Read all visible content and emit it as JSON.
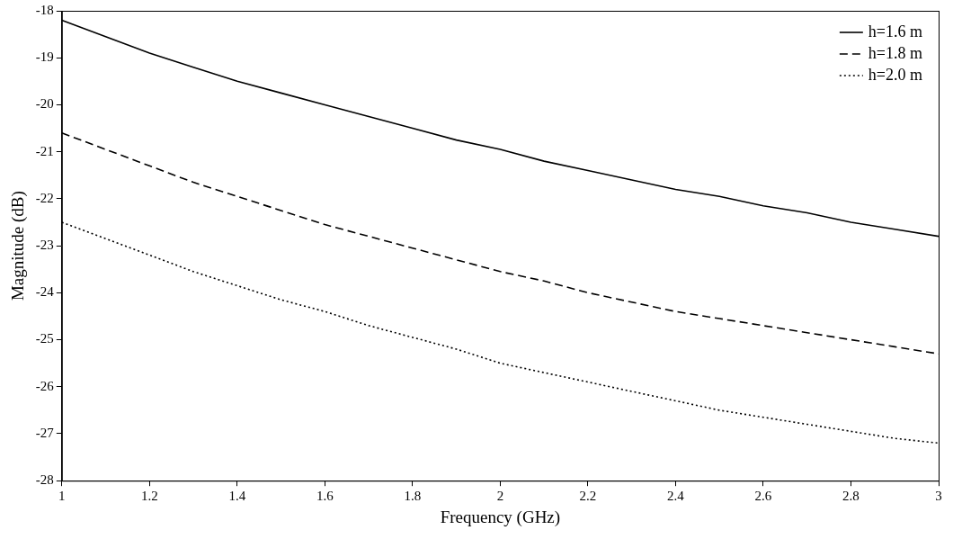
{
  "chart_data": {
    "type": "line",
    "x_label": "Frequency (GHz)",
    "y_label": "Magnitude (dB)",
    "x": [
      1.0,
      1.1,
      1.2,
      1.3,
      1.4,
      1.5,
      1.6,
      1.7,
      1.8,
      1.9,
      2.0,
      2.1,
      2.2,
      2.3,
      2.4,
      2.5,
      2.6,
      2.7,
      2.8,
      2.9,
      3.0
    ],
    "series": [
      {
        "name": "h=1.6 m",
        "color": "#000000",
        "line_style": "solid",
        "values": [
          -18.2,
          -18.55,
          -18.9,
          -19.2,
          -19.5,
          -19.75,
          -20.0,
          -20.25,
          -20.5,
          -20.75,
          -20.95,
          -21.2,
          -21.4,
          -21.6,
          -21.8,
          -21.95,
          -22.15,
          -22.3,
          -22.5,
          -22.65,
          -22.8
        ]
      },
      {
        "name": "h=1.8 m",
        "color": "#000000",
        "line_style": "dashed",
        "values": [
          -20.6,
          -20.95,
          -21.3,
          -21.65,
          -21.95,
          -22.25,
          -22.55,
          -22.8,
          -23.05,
          -23.3,
          -23.55,
          -23.75,
          -24.0,
          -24.2,
          -24.4,
          -24.55,
          -24.7,
          -24.85,
          -25.0,
          -25.15,
          -25.3
        ]
      },
      {
        "name": "h=2.0 m",
        "color": "#000000",
        "line_style": "dotted",
        "values": [
          -22.5,
          -22.85,
          -23.2,
          -23.55,
          -23.85,
          -24.15,
          -24.4,
          -24.7,
          -24.95,
          -25.2,
          -25.5,
          -25.7,
          -25.9,
          -26.1,
          -26.3,
          -26.5,
          -26.65,
          -26.8,
          -26.95,
          -27.1,
          -27.2
        ]
      }
    ],
    "xlim": [
      1,
      3
    ],
    "xticks": [
      1,
      1.2,
      1.4,
      1.6,
      1.8,
      2,
      2.2,
      2.4,
      2.6,
      2.8,
      3
    ],
    "ylim": [
      -28,
      -18
    ],
    "yticks": [
      -28,
      -27,
      -26,
      -25,
      -24,
      -23,
      -22,
      -21,
      -20,
      -19,
      -18
    ],
    "grid": false,
    "legend": "top-right"
  }
}
